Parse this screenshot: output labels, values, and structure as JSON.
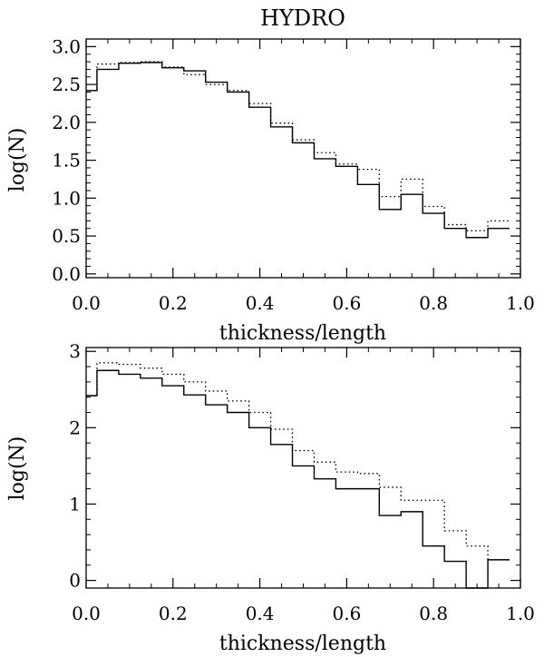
{
  "chart_data": [
    {
      "type": "line",
      "title": "HYDRO",
      "xlabel": "thickness/length",
      "ylabel": "log(N)",
      "xlim": [
        0.0,
        1.0
      ],
      "ylim": [
        -0.05,
        3.1
      ],
      "xticks": [
        0.0,
        0.2,
        0.4,
        0.6,
        0.8,
        1.0
      ],
      "xtick_labels": [
        "0.0",
        "0.2",
        "0.4",
        "0.6",
        "0.8",
        "1.0"
      ],
      "yticks": [
        0.0,
        0.5,
        1.0,
        1.5,
        2.0,
        2.5,
        3.0
      ],
      "ytick_labels": [
        "0.0",
        "0.5",
        "1.0",
        "1.5",
        "2.0",
        "2.5",
        "3.0"
      ],
      "y_minor_step": 0.1,
      "x_minor_step": 0.05,
      "bin_edges": [
        -0.025,
        0.025,
        0.075,
        0.125,
        0.175,
        0.225,
        0.275,
        0.325,
        0.375,
        0.425,
        0.475,
        0.525,
        0.575,
        0.625,
        0.675,
        0.725,
        0.775,
        0.825,
        0.875,
        0.925,
        0.975
      ],
      "series": [
        {
          "name": "solid",
          "style": "solid",
          "values": [
            2.42,
            2.7,
            2.78,
            2.79,
            2.72,
            2.68,
            2.53,
            2.4,
            2.2,
            1.94,
            1.73,
            1.52,
            1.42,
            1.18,
            0.85,
            1.05,
            0.8,
            0.6,
            0.48,
            0.6
          ]
        },
        {
          "name": "dotted",
          "style": "dotted",
          "values": [
            2.42,
            2.77,
            2.79,
            2.8,
            2.73,
            2.63,
            2.5,
            2.42,
            2.25,
            1.99,
            1.77,
            1.6,
            1.45,
            1.38,
            1.02,
            1.25,
            0.89,
            0.65,
            0.57,
            0.7
          ]
        }
      ]
    },
    {
      "type": "line",
      "title": "",
      "xlabel": "thickness/length",
      "ylabel": "log(N)",
      "xlim": [
        0.0,
        1.0
      ],
      "ylim": [
        -0.1,
        3.05
      ],
      "xticks": [
        0.0,
        0.2,
        0.4,
        0.6,
        0.8,
        1.0
      ],
      "xtick_labels": [
        "0.0",
        "0.2",
        "0.4",
        "0.6",
        "0.8",
        "1.0"
      ],
      "yticks": [
        0,
        1,
        2,
        3
      ],
      "ytick_labels": [
        "0",
        "1",
        "2",
        "3"
      ],
      "y_minor_step": 0.2,
      "x_minor_step": 0.05,
      "bin_edges": [
        -0.025,
        0.025,
        0.075,
        0.125,
        0.175,
        0.225,
        0.275,
        0.325,
        0.375,
        0.425,
        0.475,
        0.525,
        0.575,
        0.625,
        0.675,
        0.725,
        0.775,
        0.825,
        0.875,
        0.925,
        0.975
      ],
      "series": [
        {
          "name": "solid",
          "style": "solid",
          "values": [
            2.42,
            2.75,
            2.7,
            2.65,
            2.55,
            2.43,
            2.3,
            2.2,
            2.0,
            1.78,
            1.5,
            1.33,
            1.2,
            1.2,
            0.85,
            0.9,
            0.45,
            0.25,
            -0.1,
            0.27
          ]
        },
        {
          "name": "dotted",
          "style": "dotted",
          "values": [
            2.42,
            2.85,
            2.83,
            2.78,
            2.7,
            2.6,
            2.48,
            2.35,
            2.2,
            1.98,
            1.7,
            1.55,
            1.42,
            1.4,
            1.22,
            1.05,
            1.05,
            0.65,
            0.45,
            0.27
          ]
        }
      ]
    }
  ]
}
